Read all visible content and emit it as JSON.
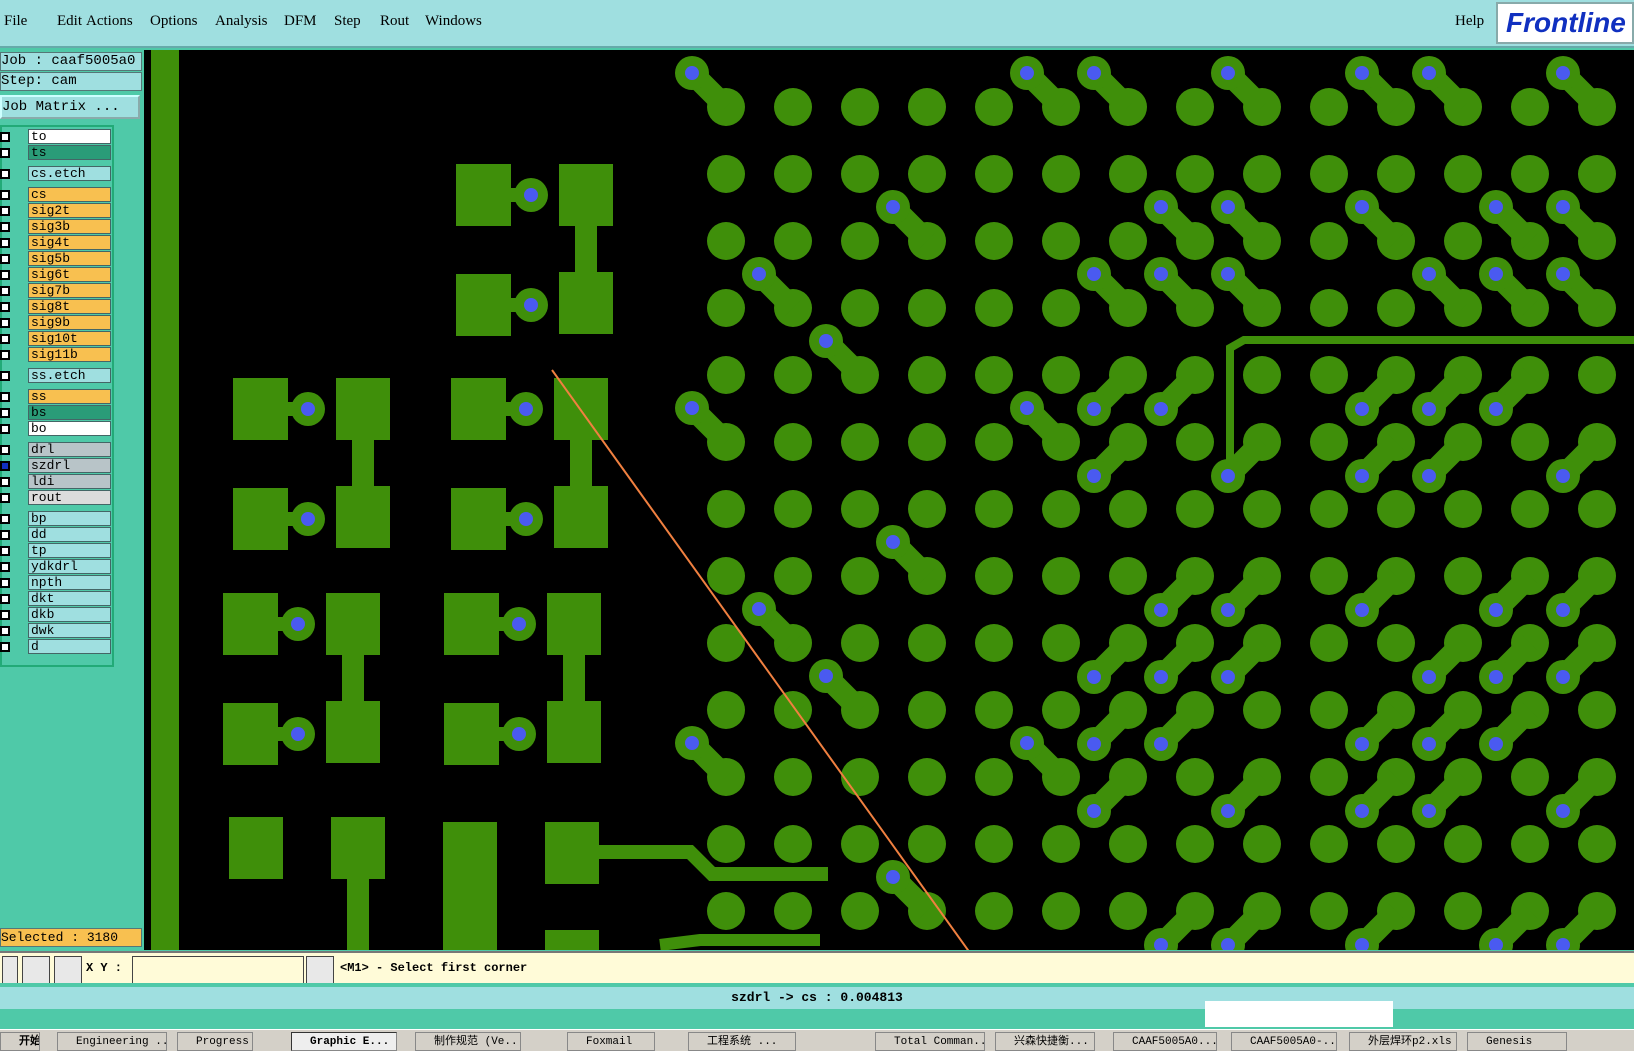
{
  "menu": {
    "items": [
      "File",
      "Edit",
      "Actions",
      "Options",
      "Analysis",
      "DFM",
      "Step",
      "Rout",
      "Windows"
    ],
    "help": "Help",
    "logo": "Frontline"
  },
  "panel": {
    "job": "Job : caaf5005a0",
    "step": "Step: cam",
    "job_matrix": "Job Matrix ...",
    "layers": [
      {
        "name": "to",
        "color": "#ffffff"
      },
      {
        "name": "ts",
        "color": "#2a9c78"
      },
      {
        "name": "cs.etch",
        "color": "#9fdfe0"
      },
      {
        "name": "cs",
        "color": "#f8c050"
      },
      {
        "name": "sig2t",
        "color": "#f8c050"
      },
      {
        "name": "sig3b",
        "color": "#f8c050"
      },
      {
        "name": "sig4t",
        "color": "#f8c050"
      },
      {
        "name": "sig5b",
        "color": "#f8c050"
      },
      {
        "name": "sig6t",
        "color": "#f8c050"
      },
      {
        "name": "sig7b",
        "color": "#f8c050"
      },
      {
        "name": "sig8t",
        "color": "#f8c050"
      },
      {
        "name": "sig9b",
        "color": "#f8c050"
      },
      {
        "name": "sig10t",
        "color": "#f8c050"
      },
      {
        "name": "sig11b",
        "color": "#f8c050"
      },
      {
        "name": "ss.etch",
        "color": "#9fdfe0"
      },
      {
        "name": "ss",
        "color": "#f8c050"
      },
      {
        "name": "bs",
        "color": "#2a9c78"
      },
      {
        "name": "bo",
        "color": "#ffffff"
      },
      {
        "name": "drl",
        "color": "#b8c4c8"
      },
      {
        "name": "szdrl",
        "color": "#b8c4c8"
      },
      {
        "name": "ldi",
        "color": "#b8c4c8"
      },
      {
        "name": "rout",
        "color": "#dcdcdc"
      },
      {
        "name": "bp",
        "color": "#9fdfe0"
      },
      {
        "name": "dd",
        "color": "#9fdfe0"
      },
      {
        "name": "tp",
        "color": "#9fdfe0"
      },
      {
        "name": "ydkdrl",
        "color": "#9fdfe0"
      },
      {
        "name": "npth",
        "color": "#9fdfe0"
      },
      {
        "name": "dkt",
        "color": "#9fdfe0"
      },
      {
        "name": "dkb",
        "color": "#9fdfe0"
      },
      {
        "name": "dwk",
        "color": "#9fdfe0"
      },
      {
        "name": "d",
        "color": "#9fdfe0"
      }
    ],
    "selected": "Selected : 3180"
  },
  "command": {
    "xy_label": "X Y :",
    "prompt": "<M1> - Select first corner"
  },
  "status": "szdrl -> cs : 0.004813",
  "taskbar": {
    "start": "开始",
    "items": [
      "Engineering ...",
      "Progress",
      "Graphic E...",
      "制作规范 (Ve...",
      "Foxmail",
      "工程系统 ...",
      "Total Comman...",
      "兴森快捷衡...",
      "CAAF5005A0...",
      "CAAF5005A0-...",
      "外层焊环p2.xls",
      "Genesis"
    ]
  }
}
